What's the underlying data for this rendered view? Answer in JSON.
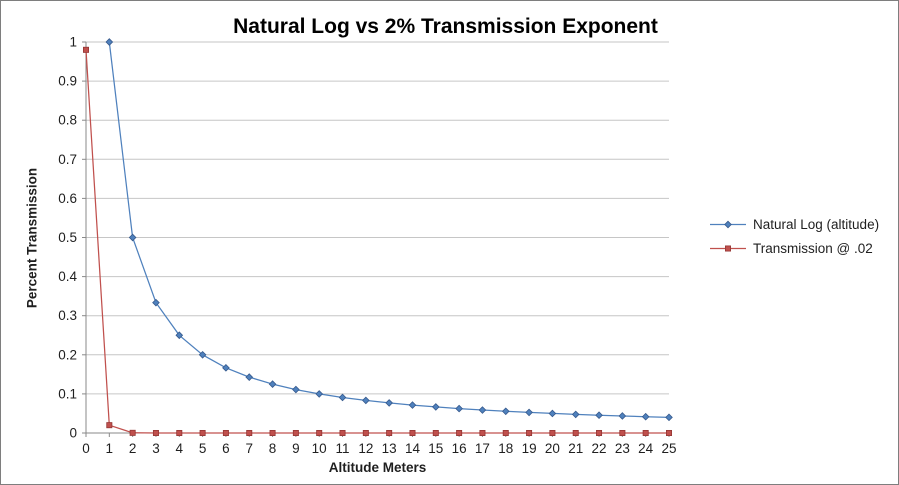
{
  "frame": {
    "background": "#ffffff",
    "border_color": "#7e7e7e"
  },
  "chart_data": {
    "type": "line",
    "title": "Natural Log vs 2% Transmission Exponent",
    "xlabel": "Altitude Meters",
    "ylabel": "Percent Transmission",
    "xlim": [
      0,
      25
    ],
    "ylim": [
      0,
      1
    ],
    "grid": true,
    "grid_color": "#c6c6c6",
    "axis_color": "#898989",
    "legend_position": "right",
    "x_ticks": [
      0,
      1,
      2,
      3,
      4,
      5,
      6,
      7,
      8,
      9,
      10,
      11,
      12,
      13,
      14,
      15,
      16,
      17,
      18,
      19,
      20,
      21,
      22,
      23,
      24,
      25
    ],
    "y_ticks": [
      {
        "value": 0.0,
        "label": "0"
      },
      {
        "value": 0.1,
        "label": "0.1"
      },
      {
        "value": 0.2,
        "label": "0.2"
      },
      {
        "value": 0.3,
        "label": "0.3"
      },
      {
        "value": 0.4,
        "label": "0.4"
      },
      {
        "value": 0.5,
        "label": "0.5"
      },
      {
        "value": 0.6,
        "label": "0.6"
      },
      {
        "value": 0.7,
        "label": "0.7"
      },
      {
        "value": 0.8,
        "label": "0.8"
      },
      {
        "value": 0.9,
        "label": "0.9"
      },
      {
        "value": 1.0,
        "label": "1"
      }
    ],
    "series": [
      {
        "name": "Natural Log (altitude)",
        "color": "#4f81bd",
        "marker": "diamond",
        "marker_edge": "#36598c",
        "x": [
          1,
          2,
          3,
          4,
          5,
          6,
          7,
          8,
          9,
          10,
          11,
          12,
          13,
          14,
          15,
          16,
          17,
          18,
          19,
          20,
          21,
          22,
          23,
          24,
          25
        ],
        "y": [
          1,
          0.5,
          0.3333,
          0.25,
          0.2,
          0.1667,
          0.1429,
          0.125,
          0.1111,
          0.1,
          0.0909,
          0.0833,
          0.0769,
          0.0714,
          0.0667,
          0.0625,
          0.0588,
          0.0556,
          0.0526,
          0.05,
          0.0476,
          0.0455,
          0.0435,
          0.0417,
          0.04
        ]
      },
      {
        "name": "Transmission @ .02",
        "color": "#c0504d",
        "marker": "square",
        "marker_edge": "#943634",
        "x": [
          0,
          1,
          2,
          3,
          4,
          5,
          6,
          7,
          8,
          9,
          10,
          11,
          12,
          13,
          14,
          15,
          16,
          17,
          18,
          19,
          20,
          21,
          22,
          23,
          24,
          25
        ],
        "y": [
          0.98,
          0.02,
          0.0004,
          0,
          0,
          0,
          0,
          0,
          0,
          0,
          0,
          0,
          0,
          0,
          0,
          0,
          0,
          0,
          0,
          0,
          0,
          0,
          0,
          0,
          0,
          0
        ]
      }
    ]
  }
}
